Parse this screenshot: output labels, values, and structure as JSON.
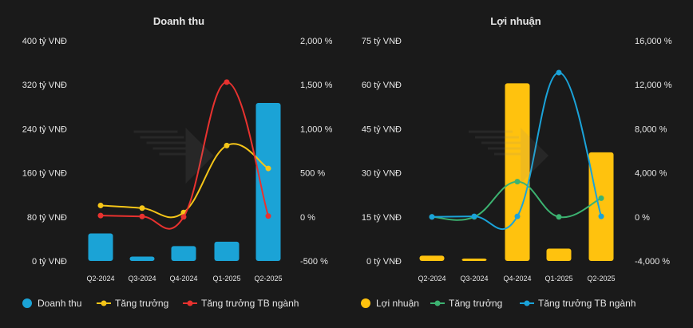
{
  "charts": [
    {
      "title": "Doanh thu",
      "categories": [
        "Q2-2024",
        "Q3-2024",
        "Q4-2024",
        "Q1-2025",
        "Q2-2025"
      ],
      "left_ticks": [
        "0 tỷ VNĐ",
        "80 tỷ VNĐ",
        "160 tỷ VNĐ",
        "240 tỷ VNĐ",
        "320 tỷ VNĐ",
        "400 tỷ VNĐ"
      ],
      "right_ticks": [
        "-500 %",
        "0 %",
        "500 %",
        "1,000 %",
        "1,500 %",
        "2,000 %"
      ],
      "legend": [
        "Doanh thu",
        "Tăng trưởng",
        "Tăng trưởng TB ngành"
      ]
    },
    {
      "title": "Lợi nhuận",
      "categories": [
        "Q2-2024",
        "Q3-2024",
        "Q4-2024",
        "Q1-2025",
        "Q2-2025"
      ],
      "left_ticks": [
        "0 tỷ VNĐ",
        "15 tỷ VNĐ",
        "30 tỷ VNĐ",
        "45 tỷ VNĐ",
        "60 tỷ VNĐ",
        "75 tỷ VNĐ"
      ],
      "right_ticks": [
        "-4,000 %",
        "0 %",
        "4,000 %",
        "8,000 %",
        "12,000 %",
        "16,000 %"
      ],
      "legend": [
        "Lợi nhuận",
        "Tăng trưởng",
        "Tăng trưởng TB ngành"
      ]
    }
  ],
  "chart_data": [
    {
      "type": "bar",
      "title": "Doanh thu",
      "categories": [
        "Q2-2024",
        "Q3-2024",
        "Q4-2024",
        "Q1-2025",
        "Q2-2025"
      ],
      "ylim": [
        0,
        400
      ],
      "y2lim": [
        -500,
        2000
      ],
      "bar_color": "#1ba3d6",
      "series": [
        {
          "name": "Doanh thu",
          "type": "bar",
          "axis": "left",
          "color": "#1ba3d6",
          "values": [
            50,
            8,
            27,
            35,
            287
          ]
        },
        {
          "name": "Tăng trưởng",
          "type": "line",
          "axis": "right",
          "color": "#f5c518",
          "values": [
            130,
            100,
            50,
            810,
            550
          ]
        },
        {
          "name": "Tăng trưởng TB ngành",
          "type": "line",
          "axis": "right",
          "color": "#e8322f",
          "values": [
            15,
            5,
            0,
            1530,
            10
          ]
        }
      ],
      "legend_position": "bottom"
    },
    {
      "type": "bar",
      "title": "Lợi nhuận",
      "categories": [
        "Q2-2024",
        "Q3-2024",
        "Q4-2024",
        "Q1-2025",
        "Q2-2025"
      ],
      "ylim": [
        0,
        75
      ],
      "y2lim": [
        -4000,
        16000
      ],
      "bar_color": "#ffc20e",
      "series": [
        {
          "name": "Lợi nhuận",
          "type": "bar",
          "axis": "left",
          "color": "#ffc20e",
          "values": [
            1.8,
            0.8,
            60.5,
            4.2,
            37
          ]
        },
        {
          "name": "Tăng trưởng",
          "type": "line",
          "axis": "right",
          "color": "#3cb371",
          "values": [
            0,
            0,
            3200,
            0,
            1700
          ]
        },
        {
          "name": "Tăng trưởng TB ngành",
          "type": "line",
          "axis": "right",
          "color": "#1aa3d9",
          "values": [
            0,
            50,
            50,
            13100,
            50
          ]
        }
      ],
      "legend_position": "bottom"
    }
  ]
}
